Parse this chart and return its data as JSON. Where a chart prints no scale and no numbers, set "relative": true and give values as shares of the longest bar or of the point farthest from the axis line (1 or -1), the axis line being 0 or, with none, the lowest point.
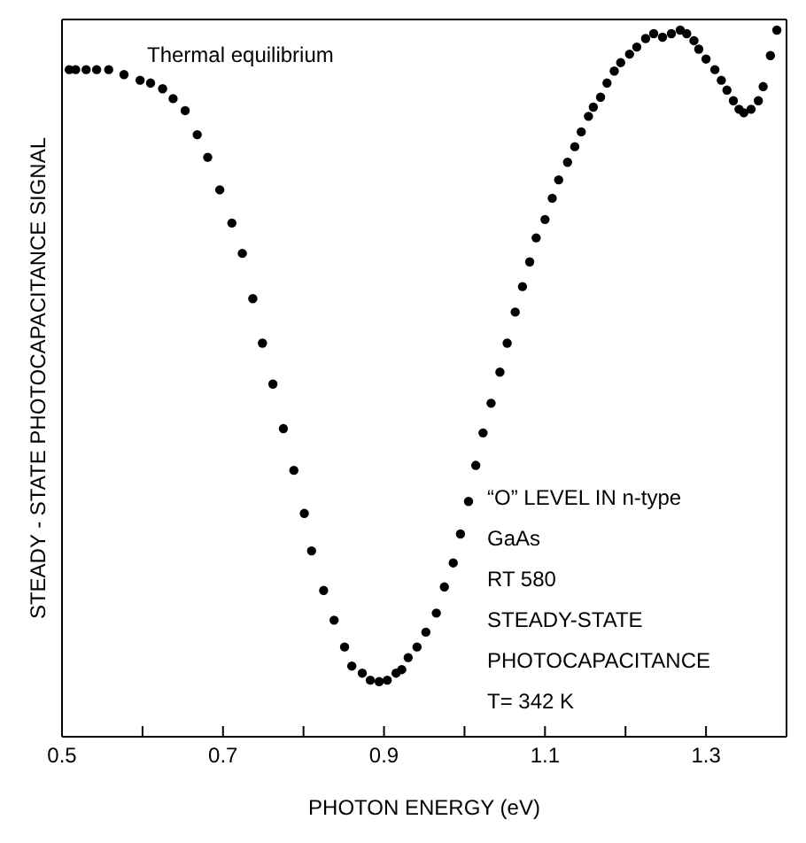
{
  "chart_data": {
    "type": "scatter",
    "relative": true,
    "xlabel": "PHOTON ENERGY (eV)",
    "ylabel": "STEADY - STATE PHOTOCAPACITANCE SIGNAL",
    "xlim": [
      0.5,
      1.4
    ],
    "xticks": [
      0.5,
      {
        "value": 0.6,
        "label": null
      },
      0.7,
      {
        "value": 0.8,
        "label": null
      },
      0.9,
      {
        "value": 1.0,
        "label": null
      },
      1.1,
      {
        "value": 1.2,
        "label": null
      },
      1.3
    ],
    "marker": "circle",
    "annotations": [
      "Thermal equilibrium",
      "“O” LEVEL IN n-type",
      "GaAs",
      "RT 580",
      "STEADY-STATE",
      "PHOTOCAPACITANCE",
      "T= 342 K"
    ],
    "series": [
      {
        "color": "#000000",
        "x": [
          0.509,
          0.517,
          0.53,
          0.543,
          0.558,
          0.577,
          0.597,
          0.61,
          0.625,
          0.638,
          0.653,
          0.668,
          0.681,
          0.696,
          0.711,
          0.724,
          0.737,
          0.749,
          0.762,
          0.775,
          0.788,
          0.801,
          0.81,
          0.825,
          0.838,
          0.851,
          0.86,
          0.873,
          0.883,
          0.894,
          0.904,
          0.915,
          0.922,
          0.93,
          0.941,
          0.952,
          0.965,
          0.975,
          0.986,
          0.995,
          1.005,
          1.014,
          1.023,
          1.033,
          1.044,
          1.053,
          1.063,
          1.072,
          1.081,
          1.089,
          1.1,
          1.109,
          1.117,
          1.128,
          1.137,
          1.145,
          1.154,
          1.16,
          1.169,
          1.177,
          1.186,
          1.194,
          1.205,
          1.214,
          1.225,
          1.235,
          1.246,
          1.257,
          1.268,
          1.276,
          1.285,
          1.291,
          1.3,
          1.311,
          1.319,
          1.326,
          1.334,
          1.341,
          1.347,
          1.356,
          1.365,
          1.371,
          1.38,
          1.388
        ],
        "values": [
          0.944,
          0.944,
          0.944,
          0.944,
          0.944,
          0.937,
          0.929,
          0.925,
          0.917,
          0.903,
          0.886,
          0.852,
          0.82,
          0.774,
          0.727,
          0.684,
          0.62,
          0.557,
          0.499,
          0.436,
          0.377,
          0.316,
          0.263,
          0.207,
          0.165,
          0.127,
          0.1,
          0.09,
          0.08,
          0.078,
          0.08,
          0.09,
          0.095,
          0.112,
          0.127,
          0.148,
          0.175,
          0.212,
          0.246,
          0.287,
          0.333,
          0.384,
          0.43,
          0.472,
          0.516,
          0.557,
          0.601,
          0.637,
          0.672,
          0.706,
          0.732,
          0.762,
          0.788,
          0.813,
          0.835,
          0.856,
          0.878,
          0.891,
          0.905,
          0.925,
          0.942,
          0.954,
          0.966,
          0.976,
          0.988,
          0.995,
          0.99,
          0.995,
          1.0,
          0.995,
          0.985,
          0.973,
          0.959,
          0.944,
          0.929,
          0.915,
          0.9,
          0.888,
          0.883,
          0.888,
          0.9,
          0.92,
          0.964,
          1.0
        ]
      }
    ]
  }
}
